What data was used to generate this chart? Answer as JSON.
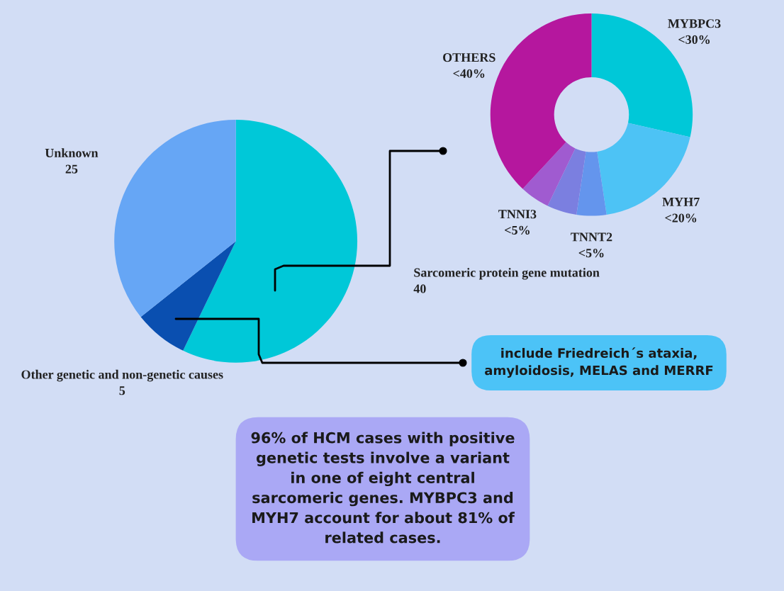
{
  "chart_data": [
    {
      "type": "pie",
      "categories": [
        "Sarcomeric protein gene mutation",
        "Other genetic and non-genetic causes",
        "Unknown"
      ],
      "values": [
        40,
        5,
        25
      ],
      "colors": [
        "#00c8d8",
        "#0a4fb0",
        "#66a6f5"
      ],
      "data_labels": true,
      "annotations": [
        "include Friedreich´s ataxia, amyloidosis, MELAS and MERRF",
        "96% of HCM cases with positive genetic tests involve a variant in one of eight central sarcomeric genes. MYBPC3 and MYH7 account for about 81% of related cases."
      ]
    },
    {
      "type": "donut",
      "categories": [
        "MYBPC3",
        "MYH7",
        "TNNT2",
        null,
        "TNNI3",
        "OTHERS"
      ],
      "values": [
        30,
        20,
        5,
        5,
        5,
        40
      ],
      "colors": [
        "#00c8d8",
        "#4dc3f5",
        "#6495ed",
        "#7b7fe0",
        "#a05bd0",
        "#b5179e"
      ],
      "value_labels": [
        "<30%",
        "<20%",
        "<5%",
        null,
        "<5%",
        "<40%"
      ]
    }
  ]
}
